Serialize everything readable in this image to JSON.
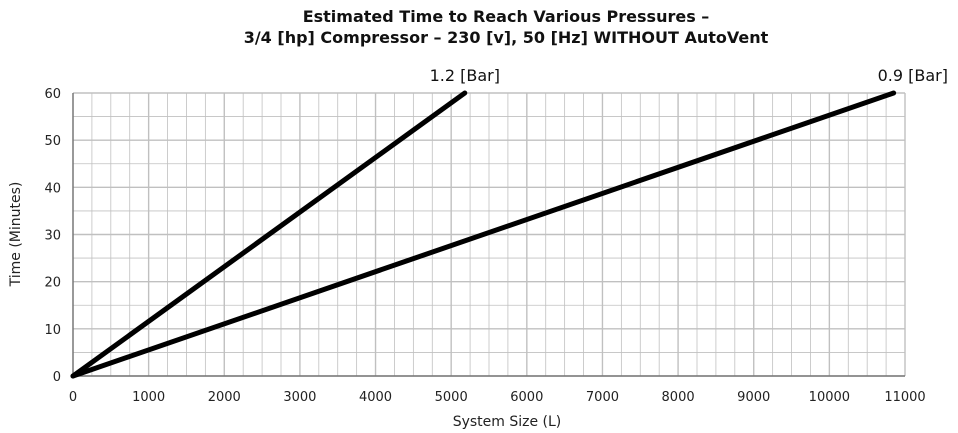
{
  "chart_data": {
    "type": "line",
    "title_line1": "Estimated Time to Reach Various Pressures –",
    "title_line2": "3/4 [hp] Compressor – 230 [v], 50 [Hz] WITHOUT AutoVent",
    "xlabel": "System Size (L)",
    "ylabel": "Time (Minutes)",
    "xlim": [
      0,
      11000
    ],
    "ylim": [
      0,
      60
    ],
    "x_ticks": [
      0,
      1000,
      2000,
      3000,
      4000,
      5000,
      6000,
      7000,
      8000,
      9000,
      10000,
      11000
    ],
    "y_ticks": [
      0,
      10,
      20,
      30,
      40,
      50,
      60
    ],
    "x_minor_step": 250,
    "y_minor_step": 5,
    "grid": true,
    "line_color": "#000000",
    "grid_color": "#c0c0c0",
    "series": [
      {
        "name": "1.2 [Bar]",
        "x": [
          0,
          5180
        ],
        "y": [
          0,
          60
        ]
      },
      {
        "name": "0.9 [Bar]",
        "x": [
          0,
          10850
        ],
        "y": [
          0,
          60
        ]
      }
    ]
  }
}
